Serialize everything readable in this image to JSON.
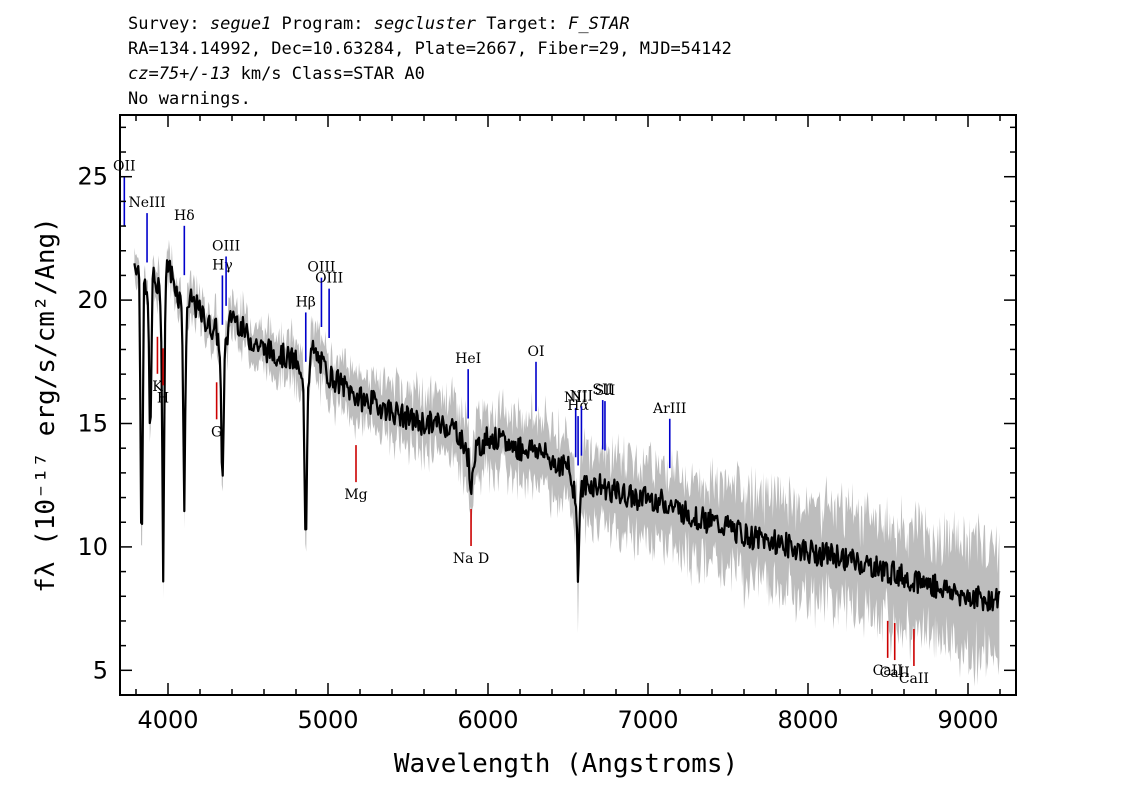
{
  "header": {
    "line1": {
      "survey_key": "Survey: ",
      "survey": "segue1",
      "program_key": " Program: ",
      "program": "segcluster",
      "target_key": " Target: ",
      "target": "F_STAR"
    },
    "line2": "RA=134.14992, Dec=10.63284, Plate=2667, Fiber=29, MJD=54142",
    "line3": {
      "cz": "cz=75+/-13",
      "rest": " km/s Class=STAR A0"
    },
    "line4": "No warnings."
  },
  "chart_data": {
    "type": "line",
    "xlabel": "Wavelength (Angstroms)",
    "ylabel": "fλ (10⁻¹⁷ erg/s/cm²/Ang)",
    "xlim": [
      3700,
      9300
    ],
    "ylim": [
      4,
      27.5
    ],
    "x_ticks": [
      4000,
      5000,
      6000,
      7000,
      8000,
      9000
    ],
    "y_ticks": [
      5,
      10,
      15,
      20,
      25
    ],
    "colors": {
      "flux": "#000000",
      "error_band": "#bdbdbd",
      "emission_lines": "#0000cc",
      "absorption_lines": "#cc0000",
      "frame": "#000000"
    },
    "series": [
      {
        "name": "flux",
        "x": [
          3800,
          3850,
          3870,
          3890,
          3900,
          3935,
          3968,
          4000,
          4050,
          4101,
          4150,
          4200,
          4250,
          4300,
          4340,
          4400,
          4450,
          4500,
          4600,
          4700,
          4800,
          4861,
          4900,
          5000,
          5100,
          5200,
          5300,
          5400,
          5500,
          5600,
          5700,
          5800,
          5890,
          6000,
          6100,
          6200,
          6300,
          6400,
          6500,
          6563,
          6600,
          6700,
          6800,
          6900,
          7000,
          7100,
          7200,
          7300,
          7400,
          7500,
          7600,
          7700,
          7800,
          7900,
          8000,
          8100,
          8200,
          8300,
          8400,
          8500,
          8600,
          8700,
          8800,
          8900,
          9000,
          9100,
          9200
        ],
        "y": [
          21.5,
          20.5,
          20.0,
          21.5,
          21.0,
          20.5,
          20.0,
          21.5,
          20.5,
          19.5,
          20.0,
          19.5,
          19.0,
          18.8,
          17.5,
          19.5,
          19.0,
          18.5,
          18.0,
          17.8,
          17.5,
          16.0,
          18.0,
          17.0,
          16.5,
          16.0,
          15.8,
          15.5,
          15.2,
          15.0,
          15.0,
          14.8,
          13.5,
          14.5,
          14.2,
          14.0,
          14.0,
          13.5,
          13.2,
          11.8,
          12.5,
          12.5,
          12.2,
          12.0,
          12.0,
          11.8,
          11.5,
          11.2,
          11.0,
          10.8,
          10.5,
          10.3,
          10.2,
          10.0,
          9.8,
          9.7,
          9.6,
          9.4,
          9.2,
          9.0,
          8.8,
          8.6,
          8.4,
          8.2,
          8.0,
          7.9,
          7.8
        ]
      }
    ],
    "spectral_lines": [
      {
        "label": "OII",
        "x": 3727,
        "kind": "emission"
      },
      {
        "label": "NeIII",
        "x": 3869,
        "kind": "emission"
      },
      {
        "label": "Hδ",
        "x": 4102,
        "kind": "emission"
      },
      {
        "label": "Hγ",
        "x": 4340,
        "kind": "emission"
      },
      {
        "label": "OIII",
        "x": 4363,
        "kind": "emission"
      },
      {
        "label": "Hβ",
        "x": 4861,
        "kind": "emission"
      },
      {
        "label": "OIII",
        "x": 4959,
        "kind": "emission"
      },
      {
        "label": "OIII",
        "x": 5007,
        "kind": "emission"
      },
      {
        "label": "HeI",
        "x": 5876,
        "kind": "emission"
      },
      {
        "label": "OI",
        "x": 6300,
        "kind": "emission"
      },
      {
        "label": "NII",
        "x": 6548,
        "kind": "emission"
      },
      {
        "label": "Hα",
        "x": 6563,
        "kind": "emission"
      },
      {
        "label": "NII",
        "x": 6584,
        "kind": "emission"
      },
      {
        "label": "SII",
        "x": 6717,
        "kind": "emission"
      },
      {
        "label": "SII",
        "x": 6731,
        "kind": "emission"
      },
      {
        "label": "ArIII",
        "x": 7136,
        "kind": "emission"
      },
      {
        "label": "K",
        "x": 3934,
        "kind": "absorption"
      },
      {
        "label": "H",
        "x": 3969,
        "kind": "absorption"
      },
      {
        "label": "G",
        "x": 4304,
        "kind": "absorption"
      },
      {
        "label": "Mg",
        "x": 5175,
        "kind": "absorption"
      },
      {
        "label": "Na D",
        "x": 5894,
        "kind": "absorption"
      },
      {
        "label": "CaII",
        "x": 8498,
        "kind": "absorption"
      },
      {
        "label": "CaII",
        "x": 8542,
        "kind": "absorption"
      },
      {
        "label": "CaII",
        "x": 8662,
        "kind": "absorption"
      }
    ],
    "grid": false,
    "legend": "none"
  }
}
